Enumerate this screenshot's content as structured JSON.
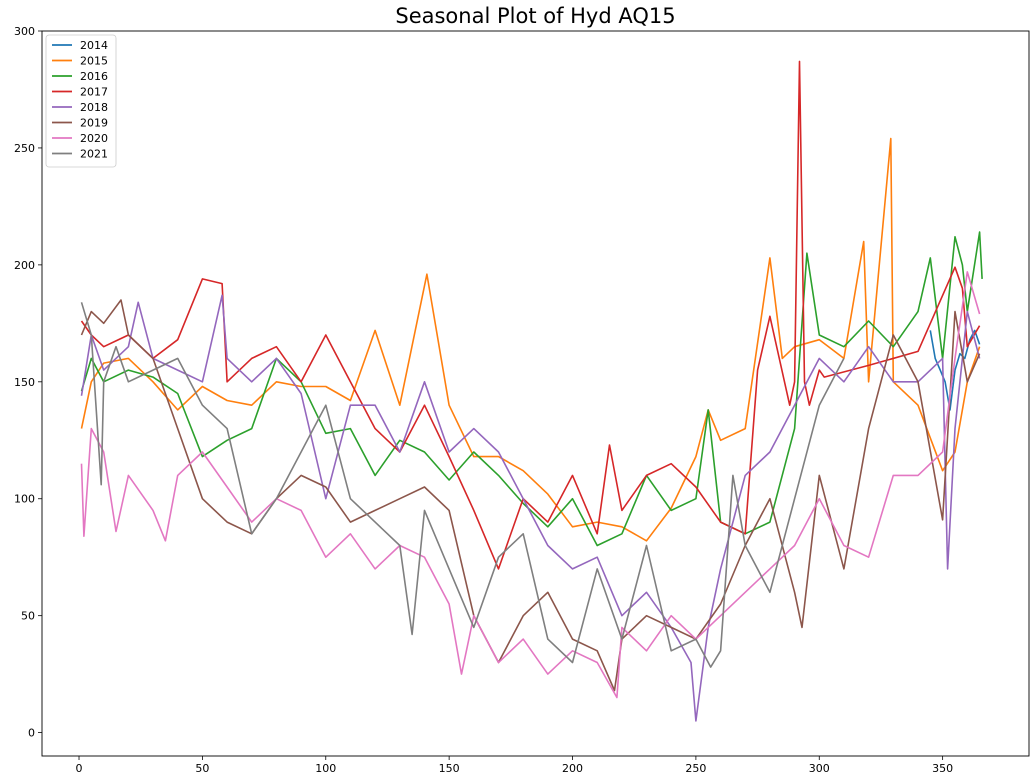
{
  "chart_data": {
    "type": "line",
    "title": "Seasonal Plot of Hyd AQ15",
    "xlabel": "",
    "ylabel": "",
    "xlim": [
      -15,
      385
    ],
    "ylim": [
      -10,
      300
    ],
    "xticks": [
      0,
      50,
      100,
      150,
      200,
      250,
      300,
      350
    ],
    "yticks": [
      0,
      50,
      100,
      150,
      200,
      250,
      300
    ],
    "grid": false,
    "legend_position": "top-left",
    "series": [
      {
        "name": "2014",
        "color": "#1f77b4",
        "x": [
          345,
          347,
          349,
          351,
          353,
          355,
          357,
          359,
          361,
          363,
          365
        ],
        "y": [
          172,
          160,
          155,
          150,
          138,
          155,
          162,
          160,
          168,
          172,
          166
        ]
      },
      {
        "name": "2015",
        "color": "#ff7f0e",
        "x": [
          1,
          5,
          10,
          20,
          30,
          40,
          50,
          60,
          70,
          80,
          90,
          100,
          110,
          120,
          130,
          141,
          150,
          160,
          170,
          180,
          190,
          200,
          210,
          220,
          230,
          240,
          250,
          255,
          260,
          270,
          280,
          285,
          290,
          300,
          310,
          318,
          320,
          329,
          330,
          340,
          350,
          355,
          360,
          365
        ],
        "y": [
          130,
          150,
          158,
          160,
          150,
          138,
          148,
          142,
          140,
          150,
          148,
          148,
          142,
          172,
          140,
          196,
          140,
          118,
          118,
          112,
          102,
          88,
          90,
          88,
          82,
          96,
          118,
          138,
          125,
          130,
          203,
          160,
          165,
          168,
          160,
          210,
          150,
          254,
          150,
          140,
          112,
          120,
          150,
          165
        ]
      },
      {
        "name": "2016",
        "color": "#2ca02c",
        "x": [
          1,
          5,
          10,
          20,
          30,
          40,
          50,
          60,
          70,
          80,
          90,
          100,
          110,
          120,
          130,
          140,
          150,
          160,
          170,
          180,
          190,
          200,
          210,
          220,
          230,
          240,
          250,
          255,
          260,
          270,
          280,
          290,
          295,
          300,
          310,
          320,
          330,
          340,
          345,
          350,
          355,
          358,
          360,
          365,
          366
        ],
        "y": [
          146,
          160,
          150,
          155,
          152,
          145,
          118,
          125,
          130,
          160,
          150,
          128,
          130,
          110,
          125,
          120,
          108,
          120,
          110,
          98,
          88,
          100,
          80,
          85,
          110,
          95,
          100,
          138,
          90,
          85,
          90,
          130,
          205,
          170,
          165,
          176,
          165,
          180,
          203,
          160,
          212,
          200,
          180,
          214,
          194
        ]
      },
      {
        "name": "2017",
        "color": "#d62728",
        "x": [
          1,
          5,
          10,
          20,
          30,
          40,
          50,
          58,
          60,
          70,
          80,
          90,
          100,
          110,
          120,
          130,
          140,
          150,
          160,
          170,
          180,
          190,
          200,
          210,
          215,
          220,
          230,
          240,
          250,
          260,
          270,
          275,
          280,
          288,
          290,
          292,
          294,
          296,
          300,
          302,
          320,
          340,
          355,
          358,
          360,
          365
        ],
        "y": [
          176,
          170,
          165,
          170,
          160,
          168,
          194,
          192,
          150,
          160,
          165,
          150,
          170,
          150,
          130,
          120,
          140,
          118,
          95,
          70,
          100,
          90,
          110,
          85,
          123,
          95,
          110,
          115,
          105,
          90,
          85,
          155,
          178,
          140,
          150,
          287,
          150,
          140,
          155,
          152,
          157,
          163,
          199,
          190,
          165,
          174
        ]
      },
      {
        "name": "2018",
        "color": "#9467bd",
        "x": [
          1,
          5,
          10,
          20,
          24,
          30,
          40,
          50,
          58,
          60,
          70,
          80,
          90,
          100,
          110,
          120,
          130,
          140,
          150,
          160,
          170,
          180,
          190,
          200,
          210,
          220,
          230,
          240,
          248,
          250,
          255,
          260,
          270,
          280,
          290,
          300,
          310,
          320,
          330,
          340,
          350,
          352,
          355,
          360,
          365
        ],
        "y": [
          144,
          170,
          155,
          165,
          184,
          160,
          155,
          150,
          187,
          160,
          150,
          160,
          145,
          100,
          140,
          140,
          120,
          150,
          120,
          130,
          120,
          100,
          80,
          70,
          75,
          50,
          60,
          45,
          30,
          5,
          45,
          70,
          110,
          120,
          140,
          160,
          150,
          165,
          150,
          150,
          160,
          70,
          130,
          180,
          160
        ]
      },
      {
        "name": "2019",
        "color": "#8c564b",
        "x": [
          1,
          5,
          10,
          17,
          20,
          30,
          40,
          50,
          60,
          70,
          80,
          90,
          100,
          110,
          120,
          130,
          140,
          150,
          160,
          170,
          180,
          190,
          200,
          210,
          217,
          220,
          230,
          240,
          250,
          260,
          270,
          280,
          290,
          293,
          300,
          310,
          320,
          330,
          340,
          350,
          355,
          360,
          365
        ],
        "y": [
          170,
          180,
          175,
          185,
          170,
          160,
          130,
          100,
          90,
          85,
          100,
          110,
          105,
          90,
          95,
          100,
          105,
          95,
          50,
          30,
          50,
          60,
          40,
          35,
          18,
          40,
          50,
          45,
          40,
          55,
          80,
          100,
          60,
          45,
          110,
          70,
          130,
          170,
          150,
          91,
          180,
          150,
          162
        ]
      },
      {
        "name": "2020",
        "color": "#e377c2",
        "x": [
          1,
          2,
          5,
          10,
          15,
          20,
          30,
          35,
          40,
          50,
          60,
          70,
          80,
          90,
          100,
          110,
          120,
          130,
          140,
          150,
          155,
          160,
          170,
          180,
          190,
          200,
          210,
          218,
          220,
          230,
          240,
          250,
          260,
          270,
          280,
          290,
          300,
          310,
          320,
          330,
          340,
          350,
          355,
          360,
          365
        ],
        "y": [
          115,
          84,
          130,
          120,
          86,
          110,
          95,
          82,
          110,
          120,
          105,
          90,
          100,
          95,
          75,
          85,
          70,
          80,
          75,
          55,
          25,
          50,
          30,
          40,
          25,
          35,
          30,
          15,
          45,
          35,
          50,
          40,
          50,
          60,
          70,
          80,
          100,
          80,
          75,
          110,
          110,
          120,
          160,
          197,
          179
        ]
      },
      {
        "name": "2021",
        "color": "#7f7f7f",
        "x": [
          1,
          5,
          9,
          10,
          15,
          20,
          30,
          40,
          50,
          60,
          70,
          80,
          90,
          100,
          110,
          120,
          130,
          135,
          140,
          150,
          160,
          170,
          180,
          190,
          200,
          210,
          220,
          230,
          240,
          250,
          256,
          260,
          265,
          270,
          280,
          290,
          300,
          310
        ],
        "y": [
          184,
          170,
          106,
          150,
          165,
          150,
          155,
          160,
          140,
          130,
          85,
          100,
          120,
          140,
          100,
          90,
          80,
          42,
          95,
          70,
          45,
          75,
          85,
          40,
          30,
          70,
          40,
          80,
          35,
          40,
          28,
          35,
          110,
          80,
          60,
          100,
          140,
          160
        ]
      }
    ]
  }
}
